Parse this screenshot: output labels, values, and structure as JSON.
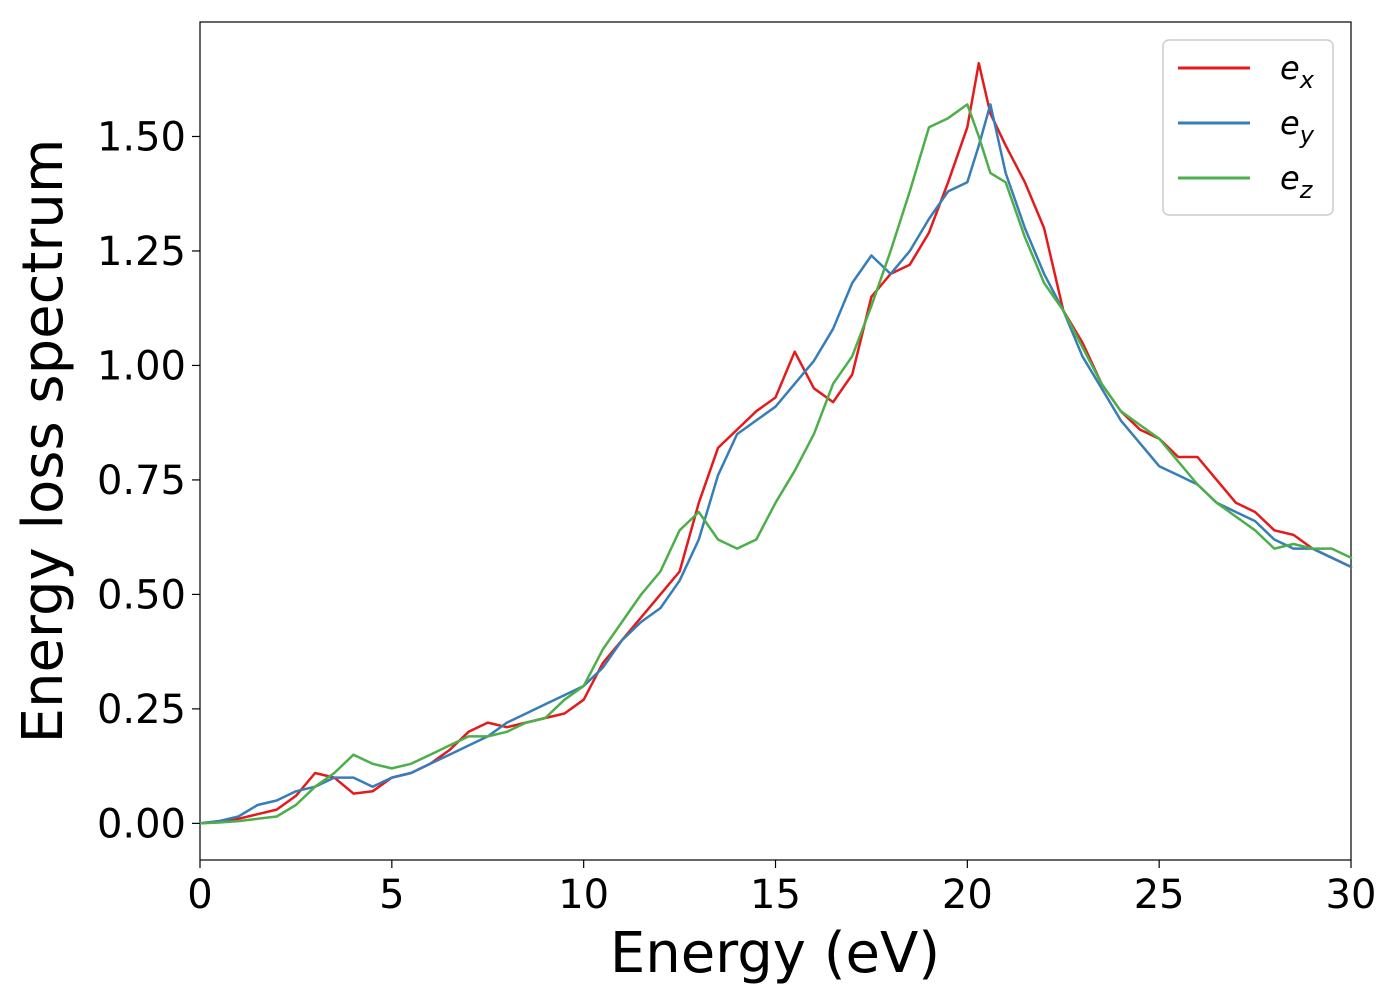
{
  "chart_data": {
    "type": "line",
    "title": "",
    "xlabel": "Energy (eV)",
    "ylabel": "Energy loss spectrum",
    "xlim": [
      0,
      30
    ],
    "ylim": [
      -0.08,
      1.75
    ],
    "xticks": [
      0,
      5,
      10,
      15,
      20,
      25,
      30
    ],
    "yticks": [
      0.0,
      0.25,
      0.5,
      0.75,
      1.0,
      1.25,
      1.5
    ],
    "ytick_labels": [
      "0.00",
      "0.25",
      "0.50",
      "0.75",
      "1.00",
      "1.25",
      "1.50"
    ],
    "xtick_labels": [
      "0",
      "5",
      "10",
      "15",
      "20",
      "25",
      "30"
    ],
    "grid": false,
    "legend_position": "top-right",
    "series": [
      {
        "name": "e_x",
        "label_base": "e",
        "label_sub": "x",
        "color": "#e41a1c",
        "x": [
          0,
          0.5,
          1,
          1.5,
          2,
          2.5,
          3,
          3.5,
          4,
          4.5,
          5,
          5.5,
          6,
          6.5,
          7,
          7.5,
          8,
          8.5,
          9,
          9.5,
          10,
          10.5,
          11,
          11.5,
          12,
          12.5,
          13,
          13.5,
          14,
          14.5,
          15,
          15.5,
          16,
          16.5,
          17,
          17.5,
          18,
          18.5,
          19,
          19.5,
          20,
          20.3,
          20.6,
          21,
          21.5,
          22,
          22.5,
          23,
          23.5,
          24,
          24.5,
          25,
          25.5,
          26,
          26.5,
          27,
          27.5,
          28,
          28.5,
          29,
          29.5,
          30
        ],
        "y": [
          0.0,
          0.005,
          0.01,
          0.02,
          0.03,
          0.06,
          0.11,
          0.1,
          0.065,
          0.07,
          0.1,
          0.11,
          0.13,
          0.16,
          0.2,
          0.22,
          0.21,
          0.22,
          0.23,
          0.24,
          0.27,
          0.35,
          0.4,
          0.45,
          0.5,
          0.55,
          0.7,
          0.82,
          0.86,
          0.9,
          0.93,
          1.03,
          0.95,
          0.92,
          0.98,
          1.15,
          1.2,
          1.22,
          1.29,
          1.4,
          1.52,
          1.66,
          1.55,
          1.48,
          1.4,
          1.3,
          1.12,
          1.05,
          0.96,
          0.9,
          0.86,
          0.84,
          0.8,
          0.8,
          0.75,
          0.7,
          0.68,
          0.64,
          0.63,
          0.6,
          0.58,
          0.56
        ]
      },
      {
        "name": "e_y",
        "label_base": "e",
        "label_sub": "y",
        "color": "#377eb8",
        "x": [
          0,
          0.5,
          1,
          1.5,
          2,
          2.5,
          3,
          3.5,
          4,
          4.5,
          5,
          5.5,
          6,
          6.5,
          7,
          7.5,
          8,
          8.5,
          9,
          9.5,
          10,
          10.5,
          11,
          11.5,
          12,
          12.5,
          13,
          13.5,
          14,
          14.5,
          15,
          15.5,
          16,
          16.5,
          17,
          17.5,
          18,
          18.5,
          19,
          19.5,
          20,
          20.3,
          20.6,
          21,
          21.5,
          22,
          22.5,
          23,
          23.5,
          24,
          24.5,
          25,
          25.5,
          26,
          26.5,
          27,
          27.5,
          28,
          28.5,
          29,
          29.5,
          30
        ],
        "y": [
          0.0,
          0.005,
          0.015,
          0.04,
          0.05,
          0.07,
          0.08,
          0.1,
          0.1,
          0.08,
          0.1,
          0.11,
          0.13,
          0.15,
          0.17,
          0.19,
          0.22,
          0.24,
          0.26,
          0.28,
          0.3,
          0.34,
          0.4,
          0.44,
          0.47,
          0.53,
          0.62,
          0.76,
          0.85,
          0.88,
          0.91,
          0.96,
          1.01,
          1.08,
          1.18,
          1.24,
          1.2,
          1.25,
          1.32,
          1.38,
          1.4,
          1.48,
          1.57,
          1.42,
          1.3,
          1.2,
          1.12,
          1.02,
          0.95,
          0.88,
          0.83,
          0.78,
          0.76,
          0.74,
          0.7,
          0.68,
          0.66,
          0.62,
          0.6,
          0.6,
          0.58,
          0.56
        ]
      },
      {
        "name": "e_z",
        "label_base": "e",
        "label_sub": "z",
        "color": "#4daf4a",
        "x": [
          0,
          0.5,
          1,
          1.5,
          2,
          2.5,
          3,
          3.5,
          4,
          4.5,
          5,
          5.5,
          6,
          6.5,
          7,
          7.5,
          8,
          8.5,
          9,
          9.5,
          10,
          10.5,
          11,
          11.5,
          12,
          12.5,
          13,
          13.5,
          14,
          14.5,
          15,
          15.5,
          16,
          16.5,
          17,
          17.5,
          18,
          18.5,
          19,
          19.5,
          20,
          20.3,
          20.6,
          21,
          21.5,
          22,
          22.5,
          23,
          23.5,
          24,
          24.5,
          25,
          25.5,
          26,
          26.5,
          27,
          27.5,
          28,
          28.5,
          29,
          29.5,
          30
        ],
        "y": [
          0.0,
          0.002,
          0.005,
          0.01,
          0.015,
          0.04,
          0.08,
          0.11,
          0.15,
          0.13,
          0.12,
          0.13,
          0.15,
          0.17,
          0.19,
          0.19,
          0.2,
          0.22,
          0.23,
          0.27,
          0.3,
          0.38,
          0.44,
          0.5,
          0.55,
          0.64,
          0.68,
          0.62,
          0.6,
          0.62,
          0.7,
          0.77,
          0.85,
          0.96,
          1.02,
          1.13,
          1.25,
          1.38,
          1.52,
          1.54,
          1.57,
          1.5,
          1.42,
          1.4,
          1.28,
          1.18,
          1.12,
          1.04,
          0.96,
          0.9,
          0.87,
          0.84,
          0.79,
          0.74,
          0.7,
          0.67,
          0.64,
          0.6,
          0.61,
          0.6,
          0.6,
          0.58
        ]
      }
    ]
  }
}
